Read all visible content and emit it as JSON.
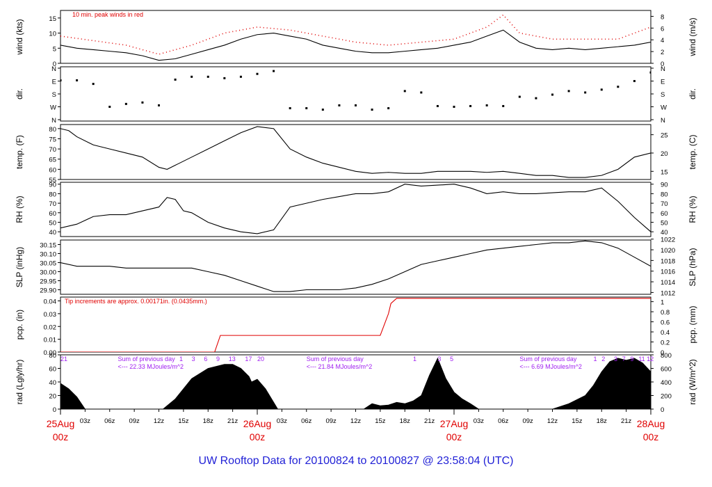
{
  "title": "UW Rooftop Data for 20100824  to  20100827 @ 23:58:04  (UTC)",
  "colors": {
    "title": "#1f1fd6",
    "accent_red": "#e00000",
    "purple": "#a020f0",
    "black": "#000000"
  },
  "chart_data": [
    {
      "type": "line",
      "panel": "wind",
      "ylabel_left": "wind (kts)",
      "ylabel_right": "wind (m/s)",
      "annotation": "10 min. peak winds in red",
      "ylim": [
        0,
        17.5
      ],
      "yticks_left": [
        "0",
        "5",
        "10",
        "15"
      ],
      "yticks_right": [
        "0",
        "2",
        "4",
        "6",
        "8"
      ],
      "series": [
        {
          "x": [
            0,
            2,
            4,
            6,
            8,
            10,
            12,
            14,
            16,
            18,
            20,
            22,
            24,
            26,
            28,
            30,
            32,
            34,
            36,
            38,
            40,
            42,
            44,
            46,
            48,
            50,
            52,
            54,
            56,
            58,
            60,
            62,
            64,
            66,
            68,
            70,
            72
          ],
          "values": [
            6,
            5,
            4.5,
            4,
            3.5,
            2.5,
            1,
            1.5,
            3,
            4.5,
            6,
            8,
            9.5,
            10,
            9,
            8,
            6,
            5,
            4,
            3.5,
            3.5,
            4,
            4.5,
            5,
            6,
            7,
            9,
            11,
            7,
            5,
            4.5,
            5,
            4.5,
            5,
            5.5,
            6,
            7
          ]
        },
        {
          "x": [
            0,
            4,
            8,
            12,
            16,
            20,
            24,
            28,
            32,
            36,
            40,
            44,
            48,
            52,
            54,
            56,
            60,
            64,
            68,
            70,
            72
          ],
          "values": [
            9,
            7.5,
            6,
            3,
            6,
            10,
            12,
            11,
            9,
            7,
            6,
            7,
            8,
            12,
            16,
            10,
            8,
            8,
            8,
            10,
            12
          ]
        }
      ]
    },
    {
      "type": "scatter",
      "panel": "dir",
      "ylabel_left": "dir.",
      "ylabel_right": "dir.",
      "yticks_left": [
        "N",
        "W",
        "S",
        "E",
        "N"
      ],
      "yticks_right": [
        "N",
        "W",
        "S",
        "E",
        "N"
      ],
      "series": [
        {
          "x": [
            0,
            2,
            4,
            6,
            8,
            10,
            12,
            14,
            16,
            18,
            20,
            22,
            24,
            26,
            28,
            30,
            32,
            34,
            36,
            38,
            40,
            42,
            44,
            46,
            48,
            50,
            52,
            54,
            56,
            58,
            60,
            62,
            64,
            66,
            68,
            70,
            72
          ],
          "values": [
            275,
            275,
            250,
            90,
            110,
            120,
            100,
            280,
            300,
            300,
            290,
            300,
            320,
            340,
            80,
            80,
            70,
            100,
            100,
            70,
            80,
            200,
            190,
            95,
            90,
            95,
            100,
            95,
            160,
            150,
            175,
            200,
            190,
            210,
            230,
            270,
            330
          ]
        }
      ]
    },
    {
      "type": "line",
      "panel": "temp",
      "ylabel_left": "temp. (F)",
      "ylabel_right": "temp. (C)",
      "ylim": [
        55,
        82
      ],
      "yticks_left": [
        "55",
        "60",
        "65",
        "70",
        "75",
        "80"
      ],
      "yticks_right": [
        "15",
        "20",
        "25"
      ],
      "series": [
        {
          "x": [
            0,
            1,
            2,
            4,
            6,
            8,
            10,
            12,
            13,
            14,
            16,
            18,
            20,
            22,
            24,
            26,
            28,
            30,
            32,
            34,
            36,
            38,
            40,
            42,
            44,
            46,
            48,
            50,
            52,
            54,
            56,
            58,
            60,
            62,
            64,
            66,
            68,
            70,
            72
          ],
          "values": [
            80,
            79,
            76,
            72,
            70,
            68,
            66,
            61,
            60,
            62,
            66,
            70,
            74,
            78,
            81,
            80,
            70,
            66,
            63,
            61,
            59,
            58,
            58.5,
            58,
            58,
            59,
            59,
            59,
            58.5,
            59,
            58,
            57,
            57,
            56,
            56,
            57,
            60,
            66,
            68
          ]
        }
      ]
    },
    {
      "type": "line",
      "panel": "rh",
      "ylabel_left": "RH (%)",
      "ylabel_right": "RH (%)",
      "ylim": [
        35,
        92
      ],
      "yticks_left": [
        "40",
        "50",
        "60",
        "70",
        "80",
        "90"
      ],
      "yticks_right": [
        "40",
        "50",
        "60",
        "70",
        "80",
        "90"
      ],
      "series": [
        {
          "x": [
            0,
            2,
            4,
            6,
            8,
            10,
            12,
            13,
            14,
            15,
            16,
            18,
            20,
            22,
            24,
            26,
            28,
            30,
            32,
            34,
            36,
            38,
            40,
            42,
            44,
            46,
            48,
            50,
            52,
            54,
            56,
            58,
            60,
            62,
            64,
            66,
            68,
            70,
            72
          ],
          "values": [
            44,
            48,
            56,
            58,
            58,
            62,
            66,
            76,
            74,
            62,
            60,
            50,
            44,
            40,
            38,
            42,
            66,
            70,
            74,
            77,
            80,
            80,
            82,
            90,
            88,
            89,
            90,
            86,
            80,
            82,
            80,
            80,
            81,
            82,
            82,
            86,
            72,
            55,
            40
          ]
        }
      ]
    },
    {
      "type": "line",
      "panel": "slp",
      "ylabel_left": "SLP (inHg)",
      "ylabel_right": "SLP (hPa)",
      "ylim": [
        29.875,
        30.175
      ],
      "yticks_left": [
        "29.90",
        "29.95",
        "30.00",
        "30.05",
        "30.10",
        "30.15"
      ],
      "yticks_right": [
        "1012",
        "1014",
        "1016",
        "1018",
        "1020",
        "1022"
      ],
      "series": [
        {
          "x": [
            0,
            2,
            4,
            6,
            8,
            10,
            12,
            14,
            16,
            18,
            20,
            22,
            24,
            26,
            28,
            30,
            32,
            34,
            36,
            38,
            40,
            42,
            44,
            46,
            48,
            50,
            52,
            54,
            56,
            58,
            60,
            62,
            64,
            66,
            68,
            70,
            72
          ],
          "values": [
            30.05,
            30.03,
            30.03,
            30.03,
            30.02,
            30.02,
            30.02,
            30.02,
            30.02,
            30.0,
            29.98,
            29.95,
            29.92,
            29.89,
            29.89,
            29.9,
            29.9,
            29.9,
            29.91,
            29.93,
            29.96,
            30.0,
            30.04,
            30.06,
            30.08,
            30.1,
            30.12,
            30.13,
            30.14,
            30.15,
            30.16,
            30.16,
            30.17,
            30.16,
            30.13,
            30.08,
            30.03
          ]
        }
      ]
    },
    {
      "type": "line",
      "panel": "pcp",
      "ylabel_left": "pcp. (in)",
      "ylabel_right": "pcp. (mm)",
      "annotation": "Tip increments are approx. 0.00171in. (0.0435mm.)",
      "ylim": [
        0,
        0.043
      ],
      "yticks_left": [
        "0.00",
        "0.01",
        "0.02",
        "0.03",
        "0.04"
      ],
      "yticks_right": [
        "0",
        "0.2",
        "0.4",
        "0.6",
        "0.8",
        "1"
      ],
      "series": [
        {
          "x": [
            0,
            18.8,
            19.5,
            20,
            39,
            40,
            40.3,
            41,
            72
          ],
          "values": [
            0,
            0,
            0.013,
            0.013,
            0.013,
            0.03,
            0.038,
            0.042,
            0.042
          ]
        }
      ]
    },
    {
      "type": "area",
      "panel": "rad",
      "ylabel_left": "rad (Lgly/hr)",
      "ylabel_right": "rad (W/m^2)",
      "ylim": [
        0,
        80
      ],
      "yticks_left": [
        "0",
        "20",
        "40",
        "60",
        "80"
      ],
      "yticks_right": [
        "0",
        "200",
        "400",
        "600",
        "800"
      ],
      "annotations": [
        {
          "x": 0,
          "label": "21"
        },
        {
          "x": 7,
          "label": "Sum of previous day"
        },
        {
          "x": 7,
          "label": "<--- 22.33 MJoules/m^2"
        },
        {
          "x": 14.5,
          "label": "1"
        },
        {
          "x": 16,
          "label": "3"
        },
        {
          "x": 17.5,
          "label": "6"
        },
        {
          "x": 19,
          "label": "9"
        },
        {
          "x": 20.5,
          "label": "13"
        },
        {
          "x": 22.5,
          "label": "17"
        },
        {
          "x": 24,
          "label": "20"
        },
        {
          "x": 30,
          "label": "Sum of previous day"
        },
        {
          "x": 30,
          "label": "<--- 21.84 MJoules/m^2"
        },
        {
          "x": 43,
          "label": "1"
        },
        {
          "x": 46,
          "label": "3"
        },
        {
          "x": 47.5,
          "label": "5"
        },
        {
          "x": 56,
          "label": "Sum of previous day"
        },
        {
          "x": 56,
          "label": "<--- 6.69 MJoules/m^2"
        },
        {
          "x": 65,
          "label": "1"
        },
        {
          "x": 66,
          "label": "2"
        },
        {
          "x": 67.5,
          "label": "3"
        },
        {
          "x": 68.5,
          "label": "7"
        },
        {
          "x": 69.5,
          "label": "9"
        },
        {
          "x": 70.5,
          "label": "11"
        },
        {
          "x": 71.5,
          "label": "12"
        }
      ],
      "series": [
        {
          "x": [
            0,
            1,
            2,
            3,
            12.5,
            14,
            16,
            18,
            20,
            21,
            22,
            23,
            23.3,
            24,
            25,
            26.5,
            37,
            38,
            39,
            40,
            41,
            42,
            43,
            44,
            45,
            46,
            47,
            48,
            49,
            50,
            51,
            60,
            62,
            64,
            65,
            66,
            67,
            68,
            69,
            70,
            71,
            72
          ],
          "values": [
            38,
            30,
            18,
            0,
            0,
            15,
            45,
            60,
            66,
            66,
            60,
            48,
            40,
            44,
            30,
            0,
            0,
            8,
            5,
            6,
            10,
            8,
            12,
            20,
            50,
            75,
            45,
            25,
            15,
            8,
            0,
            0,
            8,
            20,
            35,
            55,
            70,
            75,
            72,
            75,
            68,
            55
          ]
        }
      ]
    }
  ],
  "x_axis": {
    "xlim": [
      0,
      72
    ],
    "minor_ticks": [
      {
        "x": 3,
        "label": "03z"
      },
      {
        "x": 6,
        "label": "06z"
      },
      {
        "x": 9,
        "label": "09z"
      },
      {
        "x": 12,
        "label": "12z"
      },
      {
        "x": 15,
        "label": "15z"
      },
      {
        "x": 18,
        "label": "18z"
      },
      {
        "x": 21,
        "label": "21z"
      },
      {
        "x": 27,
        "label": "03z"
      },
      {
        "x": 30,
        "label": "06z"
      },
      {
        "x": 33,
        "label": "09z"
      },
      {
        "x": 36,
        "label": "12z"
      },
      {
        "x": 39,
        "label": "15z"
      },
      {
        "x": 42,
        "label": "18z"
      },
      {
        "x": 45,
        "label": "21z"
      },
      {
        "x": 51,
        "label": "03z"
      },
      {
        "x": 54,
        "label": "06z"
      },
      {
        "x": 57,
        "label": "09z"
      },
      {
        "x": 60,
        "label": "12z"
      },
      {
        "x": 63,
        "label": "15z"
      },
      {
        "x": 66,
        "label": "18z"
      },
      {
        "x": 69,
        "label": "21z"
      }
    ],
    "day_ticks": [
      {
        "x": 0,
        "date": "25Aug",
        "hour": "00z"
      },
      {
        "x": 24,
        "date": "26Aug",
        "hour": "00z"
      },
      {
        "x": 48,
        "date": "27Aug",
        "hour": "00z"
      },
      {
        "x": 72,
        "date": "28Aug",
        "hour": "00z"
      }
    ]
  }
}
